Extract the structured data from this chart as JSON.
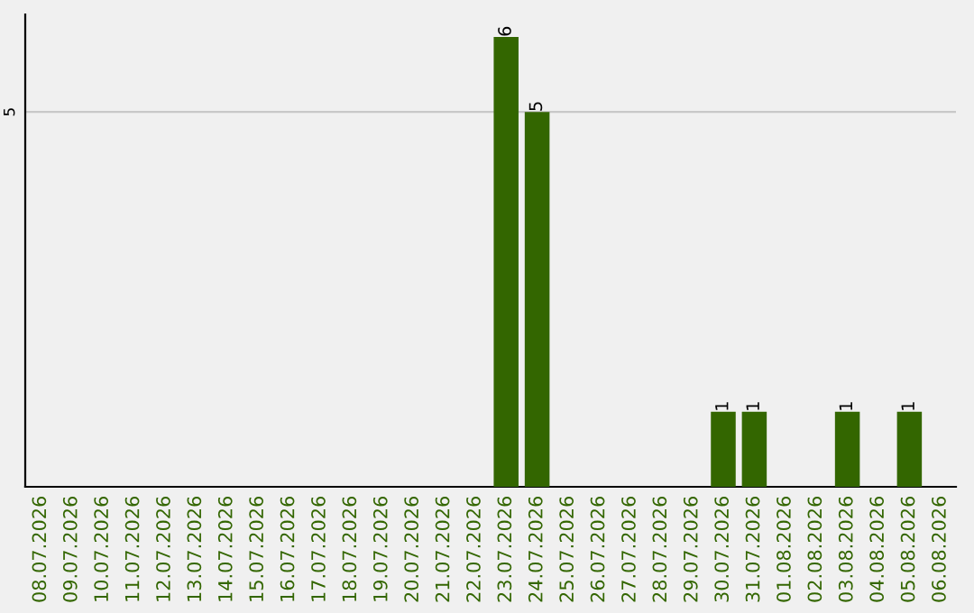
{
  "chart_data": {
    "type": "bar",
    "categories": [
      "08.07.2026",
      "09.07.2026",
      "10.07.2026",
      "11.07.2026",
      "12.07.2026",
      "13.07.2026",
      "14.07.2026",
      "15.07.2026",
      "16.07.2026",
      "17.07.2026",
      "18.07.2026",
      "19.07.2026",
      "20.07.2026",
      "21.07.2026",
      "22.07.2026",
      "23.07.2026",
      "24.07.2026",
      "25.07.2026",
      "26.07.2026",
      "27.07.2026",
      "28.07.2026",
      "29.07.2026",
      "30.07.2026",
      "31.07.2026",
      "01.08.2026",
      "02.08.2026",
      "03.08.2026",
      "04.08.2026",
      "05.08.2026",
      "06.08.2026"
    ],
    "values": [
      null,
      null,
      null,
      null,
      null,
      null,
      null,
      null,
      null,
      null,
      null,
      null,
      null,
      null,
      null,
      6,
      5,
      null,
      null,
      null,
      null,
      null,
      1,
      1,
      null,
      null,
      1,
      null,
      1,
      null
    ],
    "data_labels": true,
    "color": "#336600",
    "ylim": [
      0,
      6.3
    ],
    "ref_lines": [
      {
        "axis": "y",
        "value": 5,
        "label": "5",
        "color": "#c8c8c8"
      }
    ]
  }
}
